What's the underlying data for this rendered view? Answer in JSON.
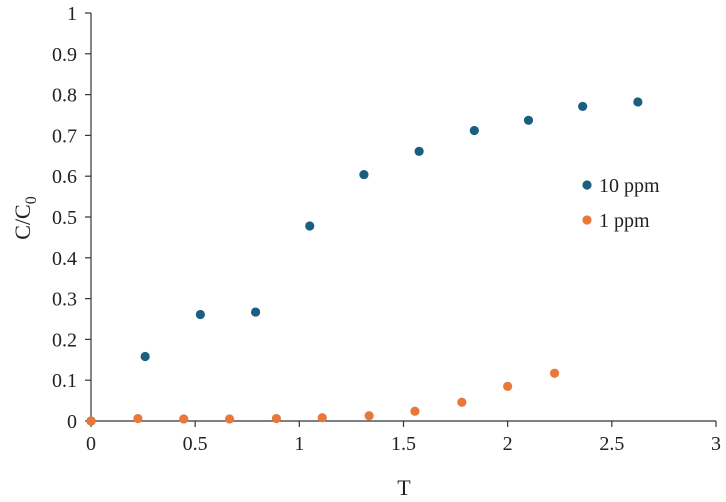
{
  "chart_data": {
    "type": "scatter",
    "xlabel": "T",
    "ylabel": {
      "main": "C/C",
      "sub": "0"
    },
    "xlim": [
      0,
      3
    ],
    "ylim": [
      0,
      1
    ],
    "xticks": [
      0,
      0.5,
      1,
      1.5,
      2,
      2.5,
      3
    ],
    "yticks": [
      0,
      0.1,
      0.2,
      0.3,
      0.4,
      0.5,
      0.6,
      0.7,
      0.8,
      0.9,
      1
    ],
    "xtick_labels": [
      "0",
      "0.5",
      "1",
      "1.5",
      "2",
      "2.5",
      "3"
    ],
    "ytick_labels": [
      "0",
      "0.1",
      "0.2",
      "0.3",
      "0.4",
      "0.5",
      "0.6",
      "0.7",
      "0.8",
      "0.9",
      "1"
    ],
    "grid": false,
    "legend_position": "right",
    "series": [
      {
        "name": "10 ppm",
        "color": "#1a5f80",
        "points": [
          [
            0,
            0
          ],
          [
            0.26,
            0.158
          ],
          [
            0.525,
            0.261
          ],
          [
            0.79,
            0.267
          ],
          [
            1.05,
            0.478
          ],
          [
            1.31,
            0.604
          ],
          [
            1.575,
            0.661
          ],
          [
            1.84,
            0.712
          ],
          [
            2.1,
            0.737
          ],
          [
            2.36,
            0.771
          ],
          [
            2.625,
            0.782
          ]
        ]
      },
      {
        "name": "1 ppm",
        "color": "#e8773a",
        "points": [
          [
            0,
            0
          ],
          [
            0.225,
            0.006
          ],
          [
            0.445,
            0.005
          ],
          [
            0.665,
            0.005
          ],
          [
            0.89,
            0.006
          ],
          [
            1.11,
            0.008
          ],
          [
            1.335,
            0.013
          ],
          [
            1.555,
            0.024
          ],
          [
            1.78,
            0.046
          ],
          [
            2.0,
            0.085
          ],
          [
            2.225,
            0.117
          ]
        ]
      }
    ]
  }
}
